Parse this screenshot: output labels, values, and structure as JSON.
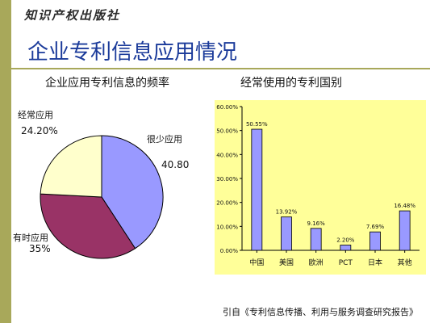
{
  "header": {
    "publisher": "知识产权出版社",
    "title": "企业专利信息应用情况"
  },
  "subtitles": {
    "left": "企业应用专利信息的频率",
    "right": "经常使用的专利国别"
  },
  "footer": {
    "source": "引自《专利信息传播、利用与服务调查研究报告》"
  },
  "colors": {
    "side_bar": "#a8a85a",
    "title": "#1a3a9a",
    "bar_bg": "#ffff99",
    "bar_fill": "#9999ff"
  },
  "chart_data": [
    {
      "type": "pie",
      "slices": [
        {
          "label": "很少应用",
          "value": 40.8,
          "display": "40.80%",
          "color": "#9999ff"
        },
        {
          "label": "有时应用",
          "value": 35,
          "display": "35%",
          "color": "#993366"
        },
        {
          "label": "经常应用",
          "value": 24.2,
          "display": "24.20%",
          "color": "#ffffcc"
        }
      ]
    },
    {
      "type": "bar",
      "categories": [
        "中国",
        "美国",
        "欧洲",
        "PCT",
        "日本",
        "其他"
      ],
      "values": [
        50.55,
        13.92,
        9.16,
        2.2,
        7.69,
        16.48
      ],
      "value_labels": [
        "50.55%",
        "13.92%",
        "9.16%",
        "2.20%",
        "7.69%",
        "16.48%"
      ],
      "ylim": [
        0,
        60
      ],
      "yticks": [
        "0.00%",
        "10.00%",
        "20.00%",
        "30.00%",
        "40.00%",
        "50.00%",
        "60.00%"
      ],
      "grid": false
    }
  ]
}
